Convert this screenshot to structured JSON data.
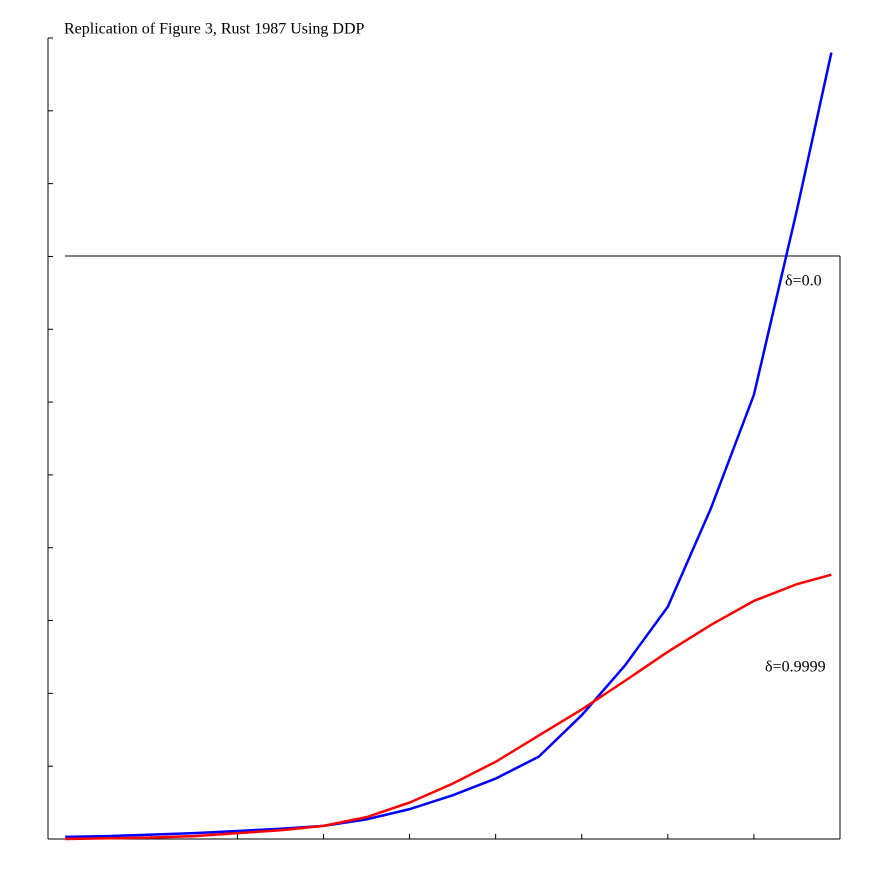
{
  "chart_data": {
    "type": "line",
    "title": "Replication of Figure 3, Rust 1987 Using DDP",
    "annotations": [
      "δ=0.0",
      "δ=0.9999"
    ],
    "x": [
      0,
      5,
      10,
      15,
      20,
      25,
      30,
      35,
      40,
      45,
      50,
      55,
      60,
      65,
      70,
      75,
      80,
      85,
      89
    ],
    "series": [
      {
        "name": "δ=0.0",
        "color": "#0000ff",
        "values": [
          0.03,
          0.04,
          0.06,
          0.08,
          0.11,
          0.14,
          0.18,
          0.27,
          0.41,
          0.6,
          0.83,
          1.13,
          1.7,
          2.38,
          3.19,
          4.54,
          6.1,
          8.64,
          10.8
        ]
      },
      {
        "name": "δ=0.9999",
        "color": "#ff0000",
        "values": [
          0,
          0.01,
          0.02,
          0.04,
          0.08,
          0.12,
          0.18,
          0.3,
          0.5,
          0.76,
          1.06,
          1.42,
          1.78,
          2.17,
          2.57,
          2.94,
          3.27,
          3.5,
          3.63
        ]
      }
    ],
    "xlim": [
      -2,
      90
    ],
    "xticks": [
      10,
      20,
      30,
      40,
      50,
      60,
      70,
      80
    ],
    "ylim": [
      0,
      11
    ],
    "yticks": [
      1,
      2,
      3,
      4,
      5,
      6,
      7,
      8,
      9,
      10,
      11
    ]
  }
}
